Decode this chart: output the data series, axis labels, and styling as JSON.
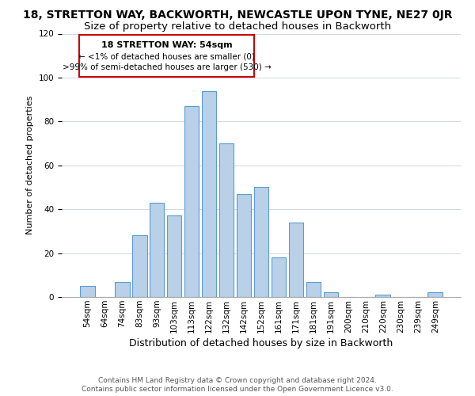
{
  "title": "18, STRETTON WAY, BACKWORTH, NEWCASTLE UPON TYNE, NE27 0JR",
  "subtitle": "Size of property relative to detached houses in Backworth",
  "xlabel": "Distribution of detached houses by size in Backworth",
  "ylabel": "Number of detached properties",
  "bar_labels": [
    "54sqm",
    "64sqm",
    "74sqm",
    "83sqm",
    "93sqm",
    "103sqm",
    "113sqm",
    "122sqm",
    "132sqm",
    "142sqm",
    "152sqm",
    "161sqm",
    "171sqm",
    "181sqm",
    "191sqm",
    "200sqm",
    "210sqm",
    "220sqm",
    "230sqm",
    "239sqm",
    "249sqm"
  ],
  "bar_values": [
    5,
    0,
    7,
    28,
    43,
    37,
    87,
    94,
    70,
    47,
    50,
    18,
    34,
    7,
    2,
    0,
    0,
    1,
    0,
    0,
    2
  ],
  "bar_color": "#b8d0e8",
  "bar_edge_color": "#5b9bd5",
  "ylim": [
    0,
    120
  ],
  "annotation_title": "18 STRETTON WAY: 54sqm",
  "annotation_line1": "← <1% of detached houses are smaller (0)",
  "annotation_line2": ">99% of semi-detached houses are larger (530) →",
  "annotation_box_color": "#ffffff",
  "annotation_box_edge_color": "#cc0000",
  "footer_line1": "Contains HM Land Registry data © Crown copyright and database right 2024.",
  "footer_line2": "Contains public sector information licensed under the Open Government Licence v3.0.",
  "title_fontsize": 10,
  "subtitle_fontsize": 9.5,
  "xlabel_fontsize": 9,
  "ylabel_fontsize": 8,
  "tick_fontsize": 7.5,
  "footer_fontsize": 6.5
}
